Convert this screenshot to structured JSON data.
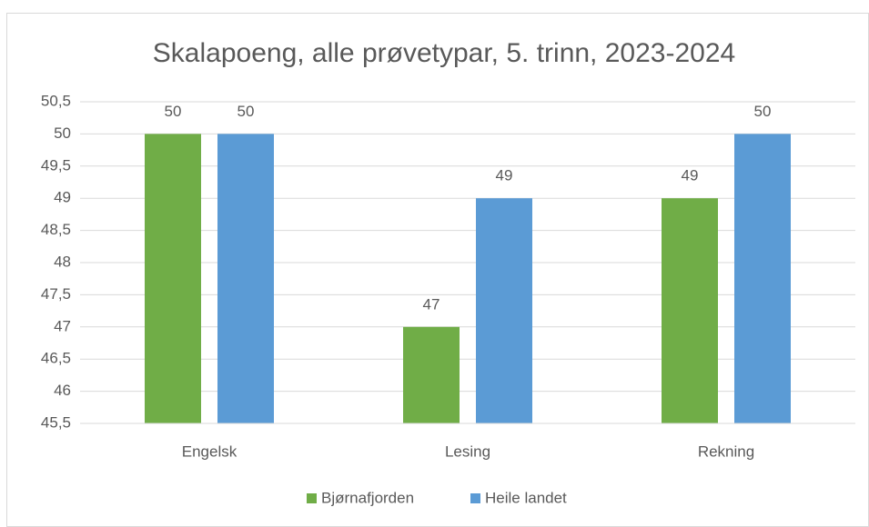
{
  "chart_data": {
    "type": "bar",
    "title": "Skalapoeng, alle prøvetypar, 5. trinn, 2023-2024",
    "categories": [
      "Engelsk",
      "Lesing",
      "Rekning"
    ],
    "series": [
      {
        "name": "Bjørnafjorden",
        "color": "#70ad47",
        "values": [
          50,
          47,
          49
        ]
      },
      {
        "name": "Heile landet",
        "color": "#5b9bd5",
        "values": [
          50,
          49,
          50
        ]
      }
    ],
    "ylim": [
      45.5,
      50.5
    ],
    "yticks": [
      {
        "value": 45.5,
        "label": "45,5"
      },
      46,
      {
        "value": 46.5,
        "label": "46,5"
      },
      47,
      {
        "value": 47.5,
        "label": "47,5"
      },
      48,
      {
        "value": 48.5,
        "label": "48,5"
      },
      49,
      {
        "value": 49.5,
        "label": "49,5"
      },
      50,
      {
        "value": 50.5,
        "label": "50,5"
      }
    ],
    "grid": true,
    "legend": "bottom"
  }
}
